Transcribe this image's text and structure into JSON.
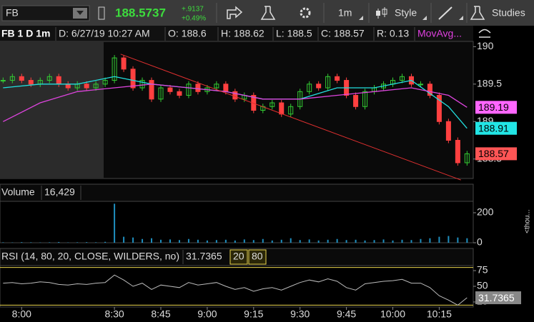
{
  "toolbar": {
    "symbol": "FB",
    "last": "188.5737",
    "change": "+.9137",
    "change_pct": "+0.49%",
    "interval": "1m",
    "style": "Style",
    "studies": "Studies"
  },
  "legend_bar": {
    "title": "FB 1 D 1m",
    "date": "D: 6/27/19 10:27 AM",
    "open": "O: 188.6",
    "high": "H: 188.62",
    "low": "L: 188.5",
    "close": "C: 188.57",
    "range": "R: 0.13",
    "studies": "MovAvg..."
  },
  "chart_data": [
    {
      "type": "candlestick",
      "x": [
        474,
        477,
        480,
        483,
        486,
        489,
        492,
        495,
        498,
        501,
        504,
        507,
        510,
        513,
        516,
        519,
        522,
        525,
        528,
        531,
        534,
        537,
        540,
        543,
        546,
        549,
        552,
        555,
        558,
        561,
        564,
        567,
        570,
        573,
        576,
        579,
        582,
        585,
        588,
        591,
        594,
        597,
        600,
        603,
        606,
        609,
        612,
        615,
        618,
        621,
        624
      ],
      "series": [
        {
          "color": "#33cc33",
          "values": [
            189.55,
            189.6,
            189.55,
            189.5,
            189.55,
            189.6,
            189.5,
            189.45,
            189.5,
            189.45,
            189.5,
            189.55,
            189.85,
            189.7,
            189.45,
            189.55,
            189.3,
            189.45,
            189.4,
            189.35,
            189.5,
            189.4,
            189.45,
            189.5,
            189.4,
            189.3,
            189.35,
            189.15,
            189.2,
            189.25,
            189.1,
            189.2,
            189.4,
            189.5,
            189.45,
            189.6,
            189.55,
            189.35,
            189.2,
            189.4,
            189.45,
            189.5,
            189.55,
            189.6,
            189.5,
            189.5,
            189.35,
            189.0,
            188.75,
            188.45,
            188.57
          ]
        }
      ],
      "down_color": "#ff4040",
      "moving_averages": {
        "x": [
          474,
          486,
          498,
          510,
          522,
          534,
          546,
          558,
          570,
          582,
          594,
          606,
          618,
          624
        ],
        "series": [
          {
            "color": "#22dddd",
            "values": [
              189.45,
              189.5,
              189.5,
              189.6,
              189.5,
              189.45,
              189.4,
              189.3,
              189.3,
              189.45,
              189.45,
              189.55,
              189.2,
              188.91
            ]
          },
          {
            "color": "#dd44dd",
            "values": [
              189.0,
              189.25,
              189.4,
              189.45,
              189.5,
              189.45,
              189.4,
              189.3,
              189.3,
              189.35,
              189.4,
              189.45,
              189.35,
              189.19
            ]
          }
        ]
      },
      "trendline": {
        "x": [
          512,
          622
        ],
        "y": [
          189.9,
          188.22
        ],
        "color": "#e03030"
      },
      "price_labels": [
        {
          "value": 189.19,
          "color": "#ff66ff"
        },
        {
          "value": 188.91,
          "color": "#22e5e5"
        },
        {
          "value": 188.57,
          "color": "#ff5555"
        }
      ],
      "xlim": [
        473,
        626
      ],
      "xticks": [
        {
          "value": 480,
          "label": "8:00"
        },
        {
          "value": 510,
          "label": "8:30"
        },
        {
          "value": 525,
          "label": "8:45"
        },
        {
          "value": 540,
          "label": "9:00"
        },
        {
          "value": 555,
          "label": "9:15"
        },
        {
          "value": 570,
          "label": "9:30"
        },
        {
          "value": 585,
          "label": "9:45"
        },
        {
          "value": 600,
          "label": "10:00"
        },
        {
          "value": 615,
          "label": "10:15"
        }
      ],
      "ylim": [
        188.24,
        190.07
      ],
      "yticks": [
        188.5,
        189,
        189.5,
        190
      ]
    },
    {
      "type": "bar",
      "title": "Volume",
      "last": {
        "value": 16429,
        "label": "16,429"
      },
      "y_label": "<thou...",
      "color": "#1f8fbf",
      "x": [
        474,
        477,
        480,
        483,
        486,
        489,
        492,
        495,
        498,
        501,
        504,
        507,
        510,
        513,
        516,
        519,
        522,
        525,
        528,
        531,
        534,
        537,
        540,
        543,
        546,
        549,
        552,
        555,
        558,
        561,
        564,
        567,
        570,
        573,
        576,
        579,
        582,
        585,
        588,
        591,
        594,
        597,
        600,
        603,
        606,
        609,
        612,
        615,
        618,
        621,
        624
      ],
      "values": [
        3,
        2,
        4,
        3,
        2,
        3,
        5,
        2,
        3,
        4,
        3,
        6,
        260,
        40,
        35,
        25,
        30,
        20,
        22,
        18,
        25,
        20,
        15,
        18,
        20,
        15,
        22,
        18,
        25,
        15,
        20,
        30,
        18,
        22,
        15,
        20,
        25,
        18,
        20,
        15,
        18,
        22,
        15,
        20,
        18,
        25,
        30,
        40,
        45,
        35,
        30
      ],
      "xlim": [
        473,
        626
      ],
      "ylim": [
        0,
        276
      ],
      "yticks": [
        0,
        200
      ]
    },
    {
      "type": "line",
      "title": "RSI (14, 80, 20, CLOSE, WILDERS, no)",
      "last": 31.7365,
      "levels": [
        20,
        80
      ],
      "color": "#bbbbbb",
      "level_color": "#e8d44d",
      "x": [
        474,
        477,
        480,
        483,
        486,
        489,
        492,
        495,
        498,
        501,
        504,
        507,
        510,
        513,
        516,
        519,
        522,
        525,
        528,
        531,
        534,
        537,
        540,
        543,
        546,
        549,
        552,
        555,
        558,
        561,
        564,
        567,
        570,
        573,
        576,
        579,
        582,
        585,
        588,
        591,
        594,
        597,
        600,
        603,
        606,
        609,
        612,
        615,
        618,
        621,
        624
      ],
      "values": [
        55,
        56,
        54,
        55,
        57,
        56,
        53,
        52,
        54,
        53,
        55,
        56,
        68,
        60,
        50,
        55,
        45,
        52,
        50,
        48,
        56,
        52,
        54,
        56,
        50,
        45,
        48,
        42,
        46,
        48,
        44,
        50,
        56,
        60,
        57,
        62,
        58,
        48,
        44,
        54,
        56,
        58,
        59,
        61,
        55,
        55,
        48,
        35,
        28,
        20,
        31.7365
      ],
      "xlim": [
        473,
        626
      ],
      "ylim": [
        17,
        83
      ],
      "yticks": [
        25,
        50,
        75
      ]
    }
  ]
}
